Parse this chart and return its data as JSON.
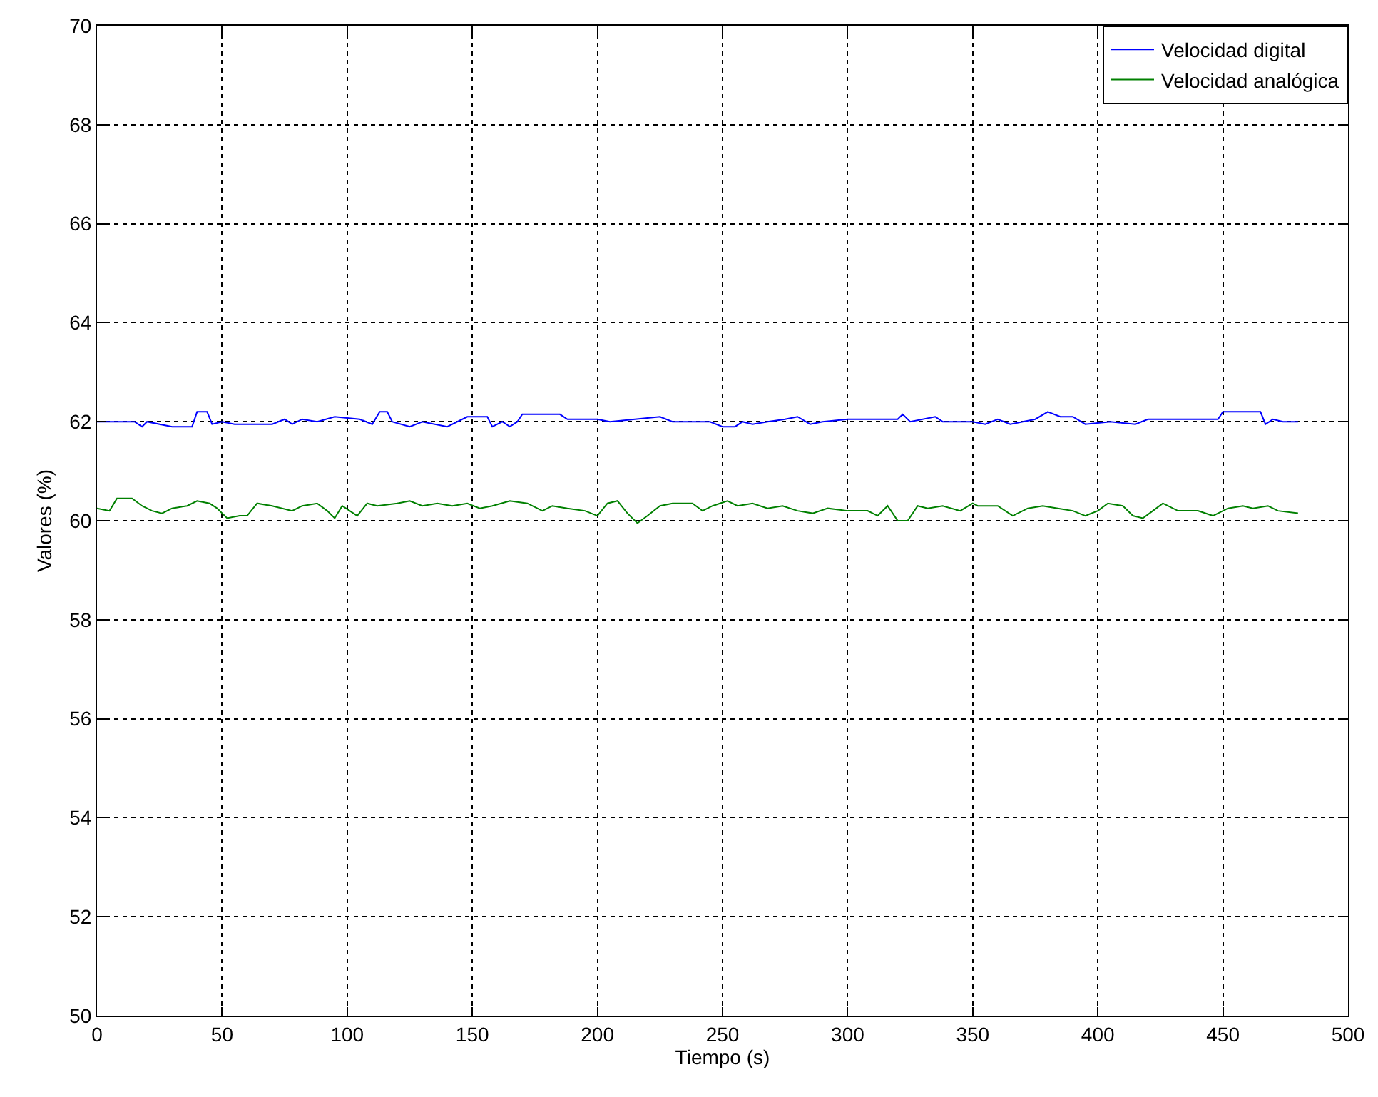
{
  "chart_data": {
    "type": "line",
    "xlabel": "Tiempo (s)",
    "ylabel": "Valores (%)",
    "xlim": [
      0,
      500
    ],
    "xticks": [
      0,
      50,
      100,
      150,
      200,
      250,
      300,
      350,
      400,
      450,
      500
    ],
    "ylim": [
      50,
      70
    ],
    "yticks": [
      50,
      52,
      54,
      56,
      58,
      60,
      62,
      64,
      66,
      68,
      70
    ],
    "grid": true,
    "legend": "top right",
    "marker": "none",
    "line_style": "solid",
    "series": [
      {
        "name": "Velocidad digital",
        "color": "#0000ff",
        "x": [
          0,
          15,
          18,
          20,
          30,
          38,
          40,
          44,
          46,
          50,
          55,
          70,
          75,
          78,
          82,
          88,
          95,
          105,
          110,
          113,
          116,
          118,
          125,
          130,
          140,
          148,
          156,
          158,
          162,
          165,
          168,
          170,
          185,
          188,
          200,
          205,
          215,
          225,
          230,
          245,
          250,
          255,
          258,
          262,
          268,
          275,
          280,
          285,
          290,
          300,
          320,
          322,
          325,
          335,
          338,
          350,
          355,
          360,
          365,
          370,
          375,
          380,
          385,
          390,
          395,
          405,
          415,
          420,
          440,
          448,
          450,
          465,
          467,
          470,
          474,
          480
        ],
        "values": [
          62.0,
          62.0,
          61.9,
          62.0,
          61.9,
          61.9,
          62.2,
          62.2,
          61.95,
          62.0,
          61.95,
          61.95,
          62.05,
          61.95,
          62.05,
          62.0,
          62.1,
          62.05,
          61.95,
          62.2,
          62.2,
          62.0,
          61.9,
          62.0,
          61.9,
          62.1,
          62.1,
          61.9,
          62.0,
          61.9,
          62.0,
          62.15,
          62.15,
          62.05,
          62.05,
          62.0,
          62.05,
          62.1,
          62.0,
          62.0,
          61.9,
          61.9,
          62.0,
          61.95,
          62.0,
          62.05,
          62.1,
          61.95,
          62.0,
          62.05,
          62.05,
          62.15,
          62.0,
          62.1,
          62.0,
          62.0,
          61.95,
          62.05,
          61.95,
          62.0,
          62.05,
          62.2,
          62.1,
          62.1,
          61.95,
          62.0,
          61.95,
          62.05,
          62.05,
          62.05,
          62.2,
          62.2,
          61.95,
          62.05,
          62.0,
          62.0
        ]
      },
      {
        "name": "Velocidad analógica",
        "color": "#008000",
        "x": [
          0,
          5,
          8,
          14,
          18,
          22,
          26,
          30,
          36,
          40,
          45,
          48,
          52,
          57,
          60,
          64,
          70,
          78,
          82,
          88,
          92,
          95,
          98,
          104,
          108,
          112,
          120,
          125,
          130,
          136,
          142,
          148,
          153,
          158,
          165,
          172,
          178,
          182,
          188,
          195,
          200,
          204,
          208,
          212,
          216,
          220,
          225,
          230,
          238,
          242,
          246,
          252,
          256,
          262,
          268,
          274,
          280,
          286,
          292,
          300,
          308,
          312,
          316,
          320,
          324,
          328,
          332,
          338,
          345,
          350,
          352,
          360,
          366,
          372,
          378,
          384,
          390,
          395,
          400,
          404,
          410,
          414,
          418,
          422,
          426,
          432,
          440,
          446,
          452,
          458,
          462,
          468,
          472,
          480
        ],
        "values": [
          60.25,
          60.2,
          60.45,
          60.45,
          60.3,
          60.2,
          60.15,
          60.25,
          60.3,
          60.4,
          60.35,
          60.25,
          60.05,
          60.1,
          60.1,
          60.35,
          60.3,
          60.2,
          60.3,
          60.35,
          60.2,
          60.05,
          60.3,
          60.1,
          60.35,
          60.3,
          60.35,
          60.4,
          60.3,
          60.35,
          60.3,
          60.35,
          60.25,
          60.3,
          60.4,
          60.35,
          60.2,
          60.3,
          60.25,
          60.2,
          60.1,
          60.35,
          60.4,
          60.15,
          59.95,
          60.1,
          60.3,
          60.35,
          60.35,
          60.2,
          60.3,
          60.4,
          60.3,
          60.35,
          60.25,
          60.3,
          60.2,
          60.15,
          60.25,
          60.2,
          60.2,
          60.1,
          60.3,
          60.0,
          60.0,
          60.3,
          60.25,
          60.3,
          60.2,
          60.35,
          60.3,
          60.3,
          60.1,
          60.25,
          60.3,
          60.25,
          60.2,
          60.1,
          60.2,
          60.35,
          60.3,
          60.1,
          60.05,
          60.2,
          60.35,
          60.2,
          60.2,
          60.1,
          60.25,
          60.3,
          60.25,
          60.3,
          60.2,
          60.15
        ]
      }
    ]
  }
}
